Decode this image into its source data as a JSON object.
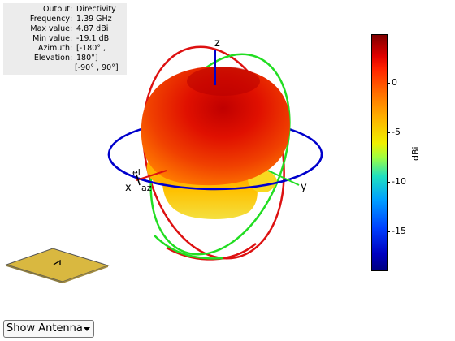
{
  "info": {
    "rows": [
      {
        "key": "Output",
        "value": "Directivity"
      },
      {
        "key": "Frequency",
        "value": "1.39 GHz"
      },
      {
        "key": "Max value",
        "value": "4.87 dBi"
      },
      {
        "key": "Min value",
        "value": "-19.1 dBi"
      },
      {
        "key": "Azimuth",
        "value": "[-180° ,"
      },
      {
        "key": "Elevation",
        "value": "180°]"
      }
    ],
    "extra": "[-90° , 90°]"
  },
  "axes": {
    "x_label": "x",
    "y_label": "y",
    "z_label": "z",
    "az_label": "az",
    "el_label": "el"
  },
  "colorbar": {
    "title": "dBi",
    "ticks": [
      "0",
      "-5",
      "-10",
      "-15"
    ],
    "tick_values": [
      0,
      -5,
      -10,
      -15
    ],
    "min": -19.1,
    "max": 4.87
  },
  "controls": {
    "show_select": "Show Antenna"
  },
  "colors": {
    "elevation_ring_red": "#dd1111",
    "elevation_ring_green": "#22dd22",
    "azimuth_ring_blue": "#0000cc",
    "z_axis": "#0000cc",
    "pattern_max": "#b00000",
    "pattern_mid": "#ff7000",
    "pattern_low": "#f0f020",
    "antenna_patch": "#d9b840"
  }
}
